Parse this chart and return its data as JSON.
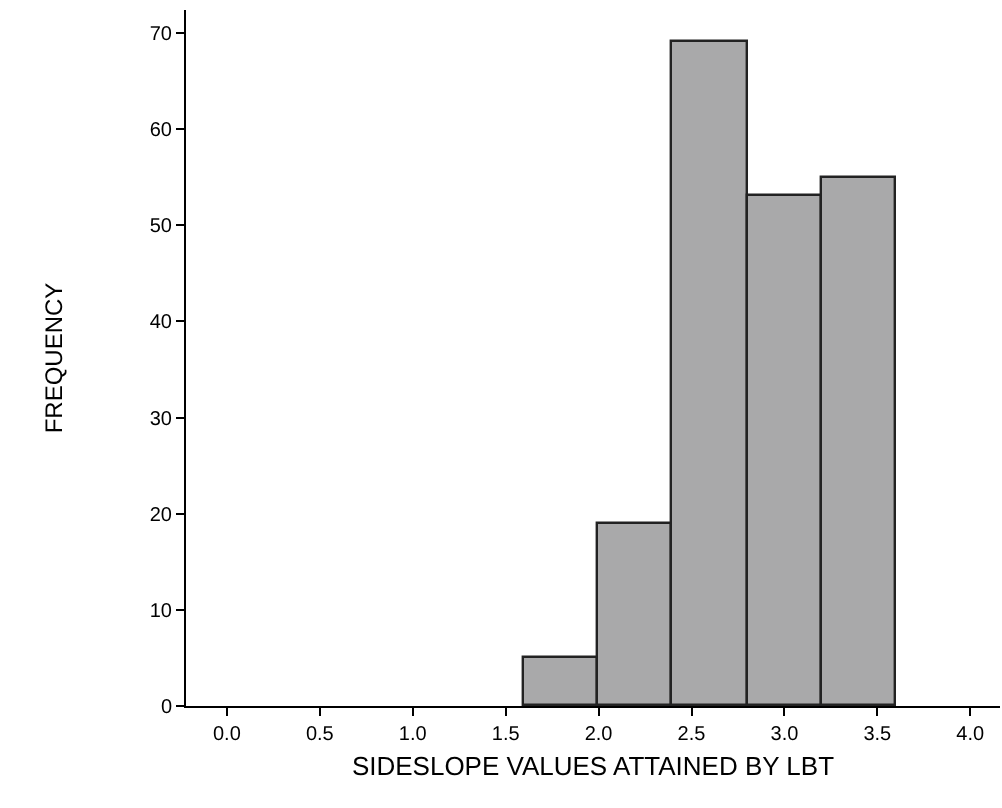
{
  "chart_data": {
    "type": "histogram",
    "xlabel": "SIDESLOPE VALUES ATTAINED BY LBT",
    "ylabel": "FREQUENCY",
    "bins": [
      1.6,
      2.0,
      2.4,
      2.8,
      3.2,
      3.6
    ],
    "values": [
      5,
      19,
      69,
      53,
      55
    ],
    "color": "#a9a9aa",
    "xlim": [
      -0.22,
      4.16
    ],
    "xticks": [
      {
        "value": 0,
        "label": "0.0"
      },
      0.5,
      {
        "value": 1,
        "label": "1.0"
      },
      1.5,
      {
        "value": 2,
        "label": "2.0"
      },
      2.5,
      {
        "value": 3,
        "label": "3.0"
      },
      3.5,
      {
        "value": 4,
        "label": "4.0"
      }
    ],
    "ylim": [
      0,
      72.4
    ],
    "yticks": [
      0,
      10,
      20,
      30,
      40,
      50,
      60,
      70
    ]
  }
}
